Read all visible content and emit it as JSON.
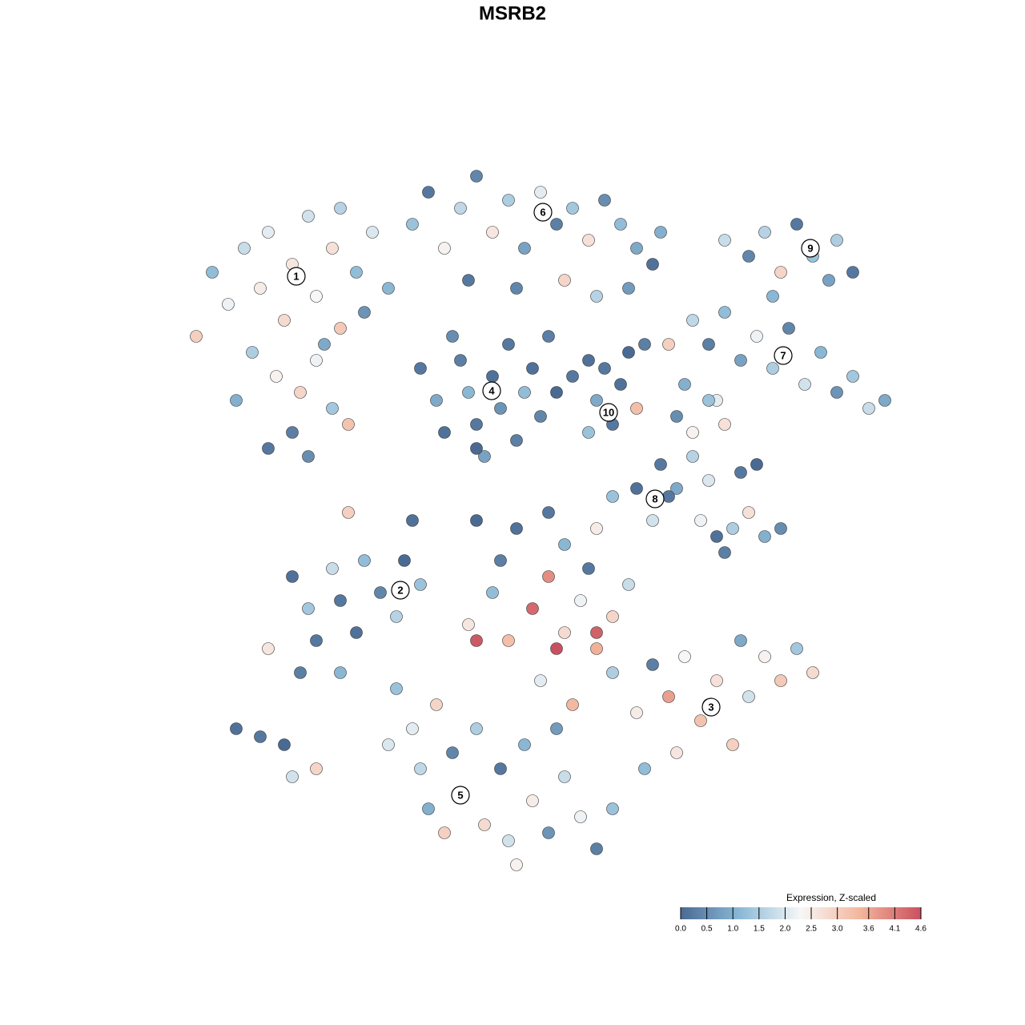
{
  "chart_data": {
    "type": "scatter",
    "title": "MSRB2",
    "xlim": [
      -47.5,
      47.5
    ],
    "ylim": [
      -46,
      46
    ],
    "x": [
      -40,
      -38,
      -36,
      -34,
      -33,
      -31,
      -30,
      -28,
      -27,
      -26,
      -25,
      -24,
      -22,
      -21,
      -20,
      -35,
      -32,
      -29,
      -27,
      -25,
      -30,
      -33,
      -28,
      -23,
      -42,
      -37,
      -24,
      -18,
      -15,
      -13,
      -11,
      -9,
      -7,
      -5,
      -3,
      -1,
      1,
      3,
      5,
      7,
      9,
      11,
      13,
      15,
      -8,
      -2,
      4,
      8,
      12,
      16,
      -14,
      -12,
      -11,
      -9,
      -8,
      -7,
      -6,
      -5,
      -4,
      -3,
      -2,
      -1,
      0,
      1,
      3,
      5,
      7,
      -10,
      -7,
      2,
      8,
      10,
      11,
      12,
      13,
      9,
      14,
      7,
      24,
      27,
      29,
      31,
      33,
      35,
      37,
      38,
      40,
      30,
      20,
      22,
      24,
      26,
      28,
      30,
      32,
      34,
      36,
      38,
      40,
      42,
      44,
      17,
      19,
      23,
      18,
      20,
      22,
      24,
      16,
      18,
      20,
      22,
      10,
      13,
      15,
      17,
      21,
      23,
      25,
      27,
      29,
      31,
      26,
      28,
      24,
      8,
      -2,
      2,
      -7,
      -15,
      -23,
      4,
      -4,
      7,
      -30,
      -28,
      -27,
      -25,
      -24,
      -22,
      -21,
      -19,
      -17,
      -16,
      -14,
      -33,
      -29,
      -24,
      -37,
      -34,
      -31,
      -30,
      -27,
      -8,
      -5,
      -3,
      0,
      2,
      4,
      6,
      8,
      10,
      12,
      -7,
      3,
      8,
      1,
      5,
      10,
      13,
      15,
      17,
      19,
      21,
      23,
      25,
      27,
      29,
      31,
      33,
      35,
      26,
      18,
      14,
      22,
      -17,
      -15,
      -14,
      -12,
      -10,
      -9,
      -7,
      -6,
      -4,
      -3,
      -1,
      0,
      2,
      4,
      6,
      8,
      -11,
      -13,
      -2,
      3,
      -18,
      10
    ],
    "y": [
      30,
      26,
      33,
      28,
      35,
      24,
      31,
      37,
      27,
      21,
      33,
      38,
      30,
      25,
      35,
      20,
      17,
      15,
      19,
      13,
      10,
      8,
      7,
      11,
      22,
      14,
      23,
      28,
      36,
      40,
      33,
      38,
      42,
      35,
      39,
      33,
      40,
      36,
      38,
      34,
      39,
      36,
      33,
      31,
      29,
      28,
      29,
      27,
      28,
      35,
      18,
      14,
      10,
      19,
      15,
      11,
      7,
      17,
      13,
      21,
      9,
      15,
      18,
      12,
      15,
      17,
      19,
      22,
      8,
      22,
      14,
      11,
      16,
      20,
      13,
      18,
      21,
      10,
      34,
      32,
      35,
      30,
      36,
      32,
      29,
      34,
      30,
      27,
      24,
      21,
      25,
      19,
      22,
      18,
      23,
      16,
      20,
      15,
      17,
      13,
      14,
      21,
      16,
      14,
      12,
      10,
      14,
      11,
      6,
      3,
      7,
      4,
      2,
      3,
      -1,
      2,
      -1,
      -3,
      -2,
      0,
      -3,
      -2,
      5,
      6,
      -5,
      -2,
      -2,
      0,
      -1,
      -1,
      0,
      -4,
      -6,
      -7,
      -8,
      -12,
      -16,
      -7,
      -11,
      -15,
      -6,
      -10,
      -13,
      -6,
      -9,
      -17,
      -20,
      -20,
      -27,
      -28,
      -29,
      -33,
      -32,
      -14,
      -10,
      -16,
      -12,
      -8,
      -15,
      -11,
      -17,
      -13,
      -9,
      -16,
      -17,
      -15,
      -21,
      -24,
      -20,
      -25,
      -19,
      -23,
      -18,
      -26,
      -21,
      -29,
      -23,
      -18,
      -21,
      -17,
      -20,
      -16,
      -30,
      -32,
      -24,
      -22,
      -27,
      -32,
      -24,
      -30,
      -35,
      -27,
      -39,
      -32,
      -41,
      -29,
      -36,
      -40,
      -33,
      -38,
      -42,
      -40,
      -37,
      -44,
      -27,
      -29,
      -37
    ],
    "values": [
      1.2,
      2.2,
      1.8,
      2.5,
      2.1,
      2.8,
      2.6,
      1.9,
      2.3,
      0.9,
      2.7,
      1.6,
      1.2,
      0.6,
      2.0,
      1.5,
      2.4,
      2.9,
      2.2,
      1.4,
      0.3,
      0.2,
      0.5,
      3.2,
      3.0,
      1.0,
      3.1,
      1.1,
      1.3,
      0.2,
      2.4,
      1.7,
      0.4,
      2.6,
      1.5,
      0.8,
      2.1,
      0.3,
      1.4,
      2.7,
      0.5,
      1.2,
      0.9,
      0.1,
      0.2,
      0.4,
      2.9,
      1.6,
      0.7,
      1.0,
      0.2,
      0.9,
      0.1,
      0.3,
      1.1,
      0.2,
      0.8,
      0.1,
      0.6,
      0.2,
      0.3,
      1.2,
      0.1,
      0.4,
      0.0,
      0.2,
      0.1,
      0.5,
      0.0,
      0.3,
      0.9,
      0.2,
      0.1,
      0.0,
      3.3,
      0.2,
      0.3,
      1.3,
      1.8,
      0.4,
      1.6,
      2.9,
      0.2,
      1.3,
      0.8,
      1.5,
      0.2,
      1.1,
      1.7,
      0.3,
      1.2,
      0.8,
      2.2,
      1.5,
      0.4,
      1.9,
      1.1,
      0.6,
      1.4,
      1.8,
      0.9,
      3.0,
      1.0,
      2.1,
      0.5,
      2.4,
      1.3,
      2.7,
      0.2,
      0.9,
      1.6,
      2.0,
      1.3,
      0.1,
      1.9,
      0.2,
      2.2,
      0.1,
      1.5,
      2.7,
      1.0,
      0.5,
      0.2,
      0.0,
      0.3,
      2.5,
      0.1,
      0.2,
      0.0,
      0.1,
      3.0,
      1.1,
      0.3,
      0.2,
      0.1,
      1.4,
      0.2,
      1.8,
      0.2,
      0.1,
      1.2,
      0.4,
      1.6,
      0.0,
      1.3,
      2.6,
      0.3,
      1.1,
      0.1,
      0.2,
      0.0,
      1.9,
      2.9,
      2.6,
      1.2,
      3.3,
      4.3,
      3.9,
      2.8,
      2.2,
      3.5,
      2.9,
      1.8,
      4.5,
      4.6,
      4.4,
      2.1,
      3.4,
      1.5,
      2.5,
      0.3,
      3.7,
      2.3,
      3.2,
      2.7,
      3.0,
      1.9,
      2.4,
      3.1,
      1.4,
      2.8,
      0.9,
      2.6,
      1.2,
      3.6,
      1.3,
      2.1,
      1.7,
      2.9,
      0.4,
      2.3,
      1.5,
      2.8,
      0.2,
      1.9,
      1.1,
      2.5,
      0.6,
      1.8,
      2.2,
      0.3,
      3.0,
      1.0,
      2.4,
      0.7,
      2.0,
      1.3
    ],
    "clusters": [
      {
        "label": "1",
        "x": -29.5,
        "y": 29.5
      },
      {
        "label": "2",
        "x": -16.5,
        "y": -9.7
      },
      {
        "label": "3",
        "x": 22.3,
        "y": -24.3
      },
      {
        "label": "4",
        "x": -5.1,
        "y": 15.2
      },
      {
        "label": "5",
        "x": -9,
        "y": -35.3
      },
      {
        "label": "6",
        "x": 1.3,
        "y": 37.5
      },
      {
        "label": "7",
        "x": 31.3,
        "y": 19.6
      },
      {
        "label": "8",
        "x": 15.3,
        "y": 1.7
      },
      {
        "label": "9",
        "x": 34.7,
        "y": 33
      },
      {
        "label": "10",
        "x": 9.5,
        "y": 12.5
      }
    ],
    "colorbar": {
      "title": "Expression, Z-scaled",
      "colors": [
        "#4a6a94",
        "#8cbad7",
        "#f7f7f7",
        "#f3b59c",
        "#c9505f"
      ],
      "ticks": [
        {
          "value": 0,
          "label": "0.0"
        },
        0.5,
        {
          "value": 1,
          "label": "1.0"
        },
        1.5,
        {
          "value": 2,
          "label": "2.0"
        },
        2.5,
        {
          "value": 3,
          "label": "3.0"
        },
        3.6,
        4.1,
        4.6
      ]
    }
  }
}
